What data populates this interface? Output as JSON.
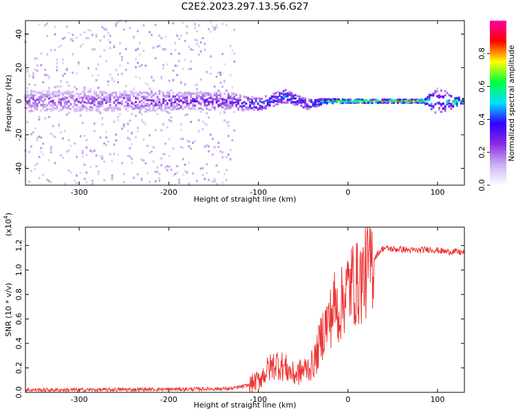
{
  "figure_title": "C2E2.2023.297.13.56.G27",
  "chart_data": [
    {
      "type": "heatmap",
      "xlabel": "Height of straight line (km)",
      "ylabel": "Frequency (Hz)",
      "xlim": [
        -360,
        130
      ],
      "ylim": [
        -50,
        48
      ],
      "xticks": [
        -300,
        -200,
        -100,
        0,
        100
      ],
      "yticks": [
        -40,
        -20,
        0,
        20,
        40
      ],
      "grid": false,
      "colorbar": {
        "label": "Normalized spectral amplitude",
        "range": [
          0.0,
          1.0
        ],
        "ticks": [
          0.0,
          0.2,
          0.4,
          0.6,
          0.8
        ],
        "colormap": [
          "#ffffff",
          "#cbb0f0",
          "#8a2be2",
          "#3000ff",
          "#00e0ff",
          "#00ff40",
          "#ffff00",
          "#ff0000",
          "#ff00a0"
        ]
      },
      "spectral_track": [
        {
          "x": -360,
          "center": 0,
          "spread": 6,
          "amplitude": 0.25
        },
        {
          "x": -250,
          "center": 0,
          "spread": 6,
          "amplitude": 0.28
        },
        {
          "x": -130,
          "center": 0,
          "spread": 5,
          "amplitude": 0.35
        },
        {
          "x": -100,
          "center": -2,
          "spread": 4,
          "amplitude": 0.45
        },
        {
          "x": -70,
          "center": 3,
          "spread": 4,
          "amplitude": 0.5
        },
        {
          "x": -45,
          "center": -2,
          "spread": 3,
          "amplitude": 0.45
        },
        {
          "x": -25,
          "center": 0,
          "spread": 1.5,
          "amplitude": 0.7
        },
        {
          "x": 0,
          "center": 0,
          "spread": 1,
          "amplitude": 0.85
        },
        {
          "x": 50,
          "center": 0,
          "spread": 1,
          "amplitude": 0.9
        },
        {
          "x": 85,
          "center": 0,
          "spread": 1,
          "amplitude": 0.9
        },
        {
          "x": 100,
          "center": 0,
          "spread": 8,
          "amplitude": 0.4
        },
        {
          "x": 130,
          "center": 0,
          "spread": 1,
          "amplitude": 0.9
        }
      ]
    },
    {
      "type": "line",
      "xlabel": "Height of straight line (km)",
      "ylabel": "SNR (10 * v/v)",
      "y_multiplier": "(x10",
      "y_multiplier_exponent": "4",
      "y_multiplier_close": ")",
      "xlim": [
        -360,
        130
      ],
      "ylim": [
        0.0,
        1.35
      ],
      "xticks": [
        -300,
        -200,
        -100,
        0,
        100
      ],
      "yticks": [
        0.0,
        0.2,
        0.4,
        0.6,
        0.8,
        1.0,
        1.2
      ],
      "grid": false,
      "series": [
        {
          "color": "#ee3333",
          "x": [
            -360,
            -300,
            -200,
            -130,
            -110,
            -100,
            -90,
            -80,
            -70,
            -60,
            -50,
            -40,
            -35,
            -30,
            -25,
            -20,
            -15,
            -10,
            -5,
            0,
            5,
            10,
            15,
            20,
            25,
            30,
            35,
            40,
            50,
            60,
            70,
            80,
            90,
            100,
            110,
            120,
            130
          ],
          "y": [
            0.02,
            0.02,
            0.025,
            0.03,
            0.06,
            0.1,
            0.18,
            0.24,
            0.2,
            0.14,
            0.18,
            0.22,
            0.3,
            0.45,
            0.55,
            0.6,
            0.72,
            0.65,
            0.78,
            0.85,
            0.9,
            0.88,
            0.92,
            0.98,
            1.05,
            1.1,
            1.15,
            1.18,
            1.17,
            1.17,
            1.16,
            1.16,
            1.17,
            1.16,
            1.15,
            1.15,
            1.14
          ]
        }
      ]
    }
  ]
}
